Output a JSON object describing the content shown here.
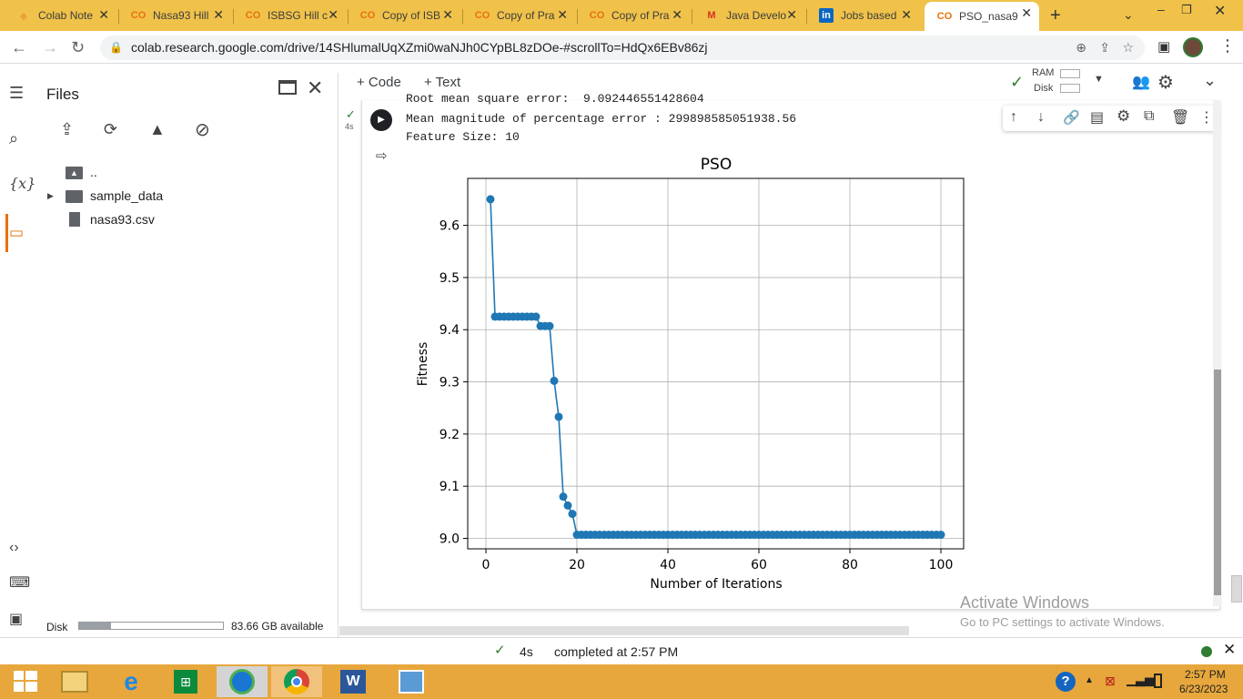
{
  "browser": {
    "tabs": [
      {
        "title": "Colab Note",
        "fav": "colab-drive-icon"
      },
      {
        "title": "Nasa93 Hill",
        "fav": "colab-icon"
      },
      {
        "title": "ISBSG Hill c",
        "fav": "colab-icon"
      },
      {
        "title": "Copy of ISB",
        "fav": "colab-icon"
      },
      {
        "title": "Copy of Pra",
        "fav": "colab-icon"
      },
      {
        "title": "Copy of Pra",
        "fav": "colab-icon"
      },
      {
        "title": "Java Develo",
        "fav": "gmail-icon"
      },
      {
        "title": "Jobs based",
        "fav": "linkedin-icon"
      },
      {
        "title": "PSO_nasa9",
        "fav": "colab-icon"
      }
    ],
    "url": "colab.research.google.com/drive/14SHlumalUqXZmi0waNJh0CYpBL8zDOe-#scrollTo=HdQx6EBv86zj"
  },
  "colab": {
    "add_code": "+ Code",
    "add_text": "+ Text",
    "ram_label": "RAM",
    "disk_label": "Disk"
  },
  "files_panel": {
    "title": "Files",
    "tree": [
      {
        "name": "..",
        "kind": "folder-up"
      },
      {
        "name": "sample_data",
        "kind": "folder"
      },
      {
        "name": "nasa93.csv",
        "kind": "file"
      }
    ],
    "disk_label": "Disk",
    "disk_available": "83.66 GB available",
    "disk_fill": 0.22
  },
  "cell": {
    "exec_time": "4s",
    "output_lines": [
      "Root mean square error:  9.092446551428604",
      "Mean magnitude of percentage error : 299898585051938.56",
      "Feature Size: 10"
    ]
  },
  "chart_data": {
    "type": "line",
    "title": "PSO",
    "xlabel": "Number of Iterations",
    "ylabel": "Fitness",
    "xlim": [
      -4,
      105
    ],
    "ylim": [
      8.98,
      9.69
    ],
    "xticks": [
      0,
      20,
      40,
      60,
      80,
      100
    ],
    "yticks": [
      9.0,
      9.1,
      9.2,
      9.3,
      9.4,
      9.5,
      9.6
    ],
    "grid": true,
    "color": "#1f77b4",
    "series": [
      {
        "x": [
          1,
          2,
          3,
          4,
          5,
          6,
          7,
          8,
          9,
          10,
          11,
          12,
          13,
          14,
          15,
          16,
          17,
          18,
          19,
          20,
          21,
          22,
          23,
          24,
          25,
          26,
          27,
          28,
          29,
          30,
          31,
          32,
          33,
          34,
          35,
          36,
          37,
          38,
          39,
          40,
          41,
          42,
          43,
          44,
          45,
          46,
          47,
          48,
          49,
          50,
          51,
          52,
          53,
          54,
          55,
          56,
          57,
          58,
          59,
          60,
          61,
          62,
          63,
          64,
          65,
          66,
          67,
          68,
          69,
          70,
          71,
          72,
          73,
          74,
          75,
          76,
          77,
          78,
          79,
          80,
          81,
          82,
          83,
          84,
          85,
          86,
          87,
          88,
          89,
          90,
          91,
          92,
          93,
          94,
          95,
          96,
          97,
          98,
          99,
          100
        ],
        "y": [
          9.65,
          9.425,
          9.425,
          9.425,
          9.425,
          9.425,
          9.425,
          9.425,
          9.425,
          9.425,
          9.425,
          9.407,
          9.407,
          9.407,
          9.302,
          9.233,
          9.08,
          9.063,
          9.047,
          9.007,
          9.007,
          9.007,
          9.007,
          9.007,
          9.007,
          9.007,
          9.007,
          9.007,
          9.007,
          9.007,
          9.007,
          9.007,
          9.007,
          9.007,
          9.007,
          9.007,
          9.007,
          9.007,
          9.007,
          9.007,
          9.007,
          9.007,
          9.007,
          9.007,
          9.007,
          9.007,
          9.007,
          9.007,
          9.007,
          9.007,
          9.007,
          9.007,
          9.007,
          9.007,
          9.007,
          9.007,
          9.007,
          9.007,
          9.007,
          9.007,
          9.007,
          9.007,
          9.007,
          9.007,
          9.007,
          9.007,
          9.007,
          9.007,
          9.007,
          9.007,
          9.007,
          9.007,
          9.007,
          9.007,
          9.007,
          9.007,
          9.007,
          9.007,
          9.007,
          9.007,
          9.007,
          9.007,
          9.007,
          9.007,
          9.007,
          9.007,
          9.007,
          9.007,
          9.007,
          9.007,
          9.007,
          9.007,
          9.007,
          9.007,
          9.007,
          9.007,
          9.007,
          9.007,
          9.007,
          9.007
        ]
      }
    ]
  },
  "watermark": {
    "line1": "Activate Windows",
    "line2": "Go to PC settings to activate Windows."
  },
  "status": {
    "time": "4s",
    "text": "completed at 2:57 PM"
  },
  "taskbar": {
    "clock_time": "2:57 PM",
    "clock_date": "6/23/2023"
  }
}
